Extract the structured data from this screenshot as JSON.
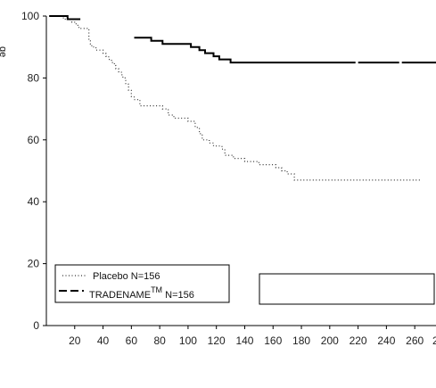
{
  "chart_data": {
    "type": "line",
    "title": "",
    "xlabel": "",
    "ylabel": "ge",
    "xlim": [
      0,
      275
    ],
    "ylim": [
      0,
      100
    ],
    "x_ticks": [
      20,
      40,
      60,
      80,
      100,
      120,
      140,
      160,
      180,
      200,
      220,
      240,
      260
    ],
    "x_tick_last_partial": "2",
    "y_ticks": [
      0,
      20,
      40,
      60,
      80,
      100
    ],
    "grid": false,
    "legend_position": "bottom-left",
    "series": [
      {
        "name": "Placebo",
        "legend_label": "Placebo N=156",
        "style": "dotted",
        "color": "#333333",
        "x": [
          2,
          6,
          10,
          12,
          15,
          18,
          21,
          23,
          24,
          26,
          28,
          30,
          31,
          32,
          35,
          38,
          40,
          42,
          44,
          46,
          48,
          49,
          51,
          53,
          54,
          56,
          58,
          60,
          62,
          64,
          66,
          70,
          76,
          82,
          86,
          90,
          96,
          100,
          102,
          105,
          108,
          110,
          115,
          118,
          124,
          126,
          132,
          140,
          150,
          162,
          166,
          170,
          175,
          190,
          200,
          250,
          264
        ],
        "y": [
          100,
          100,
          100,
          99,
          99,
          98,
          97,
          96,
          96,
          96,
          96,
          92,
          91,
          90,
          89,
          89,
          88,
          87,
          86,
          85,
          84,
          83,
          82,
          81,
          80,
          78,
          76,
          74,
          73,
          73,
          71,
          71,
          71,
          70,
          68,
          67,
          67,
          66,
          66,
          64,
          62,
          60,
          59,
          58,
          57,
          55,
          54,
          53,
          52,
          51,
          50,
          49,
          47,
          47,
          47,
          47,
          47
        ]
      },
      {
        "name": "TRADENAME",
        "legend_label_main": "TRADENAME",
        "legend_label_sup": "TM",
        "legend_label_suffix": " N=156",
        "style": "dashed-solid",
        "color": "#000000",
        "segments": [
          {
            "x": [
              2,
              6,
              10,
              15,
              20,
              24
            ],
            "y": [
              100,
              100,
              100,
              99,
              99,
              99
            ]
          },
          {
            "x": [
              62,
              74,
              82,
              92,
              102,
              108,
              112,
              114,
              118,
              122,
              130,
              150,
              170,
              200,
              240,
              275
            ],
            "y": [
              93,
              92,
              91,
              91,
              90,
              89,
              88,
              88,
              87,
              86,
              85,
              85,
              85,
              85,
              85,
              85
            ]
          }
        ]
      }
    ],
    "annotation_box_text": ""
  }
}
